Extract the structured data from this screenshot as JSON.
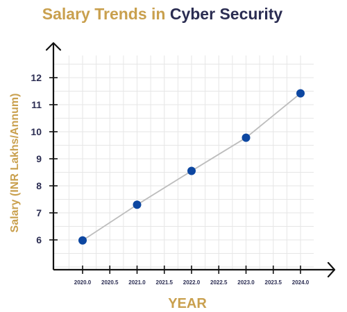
{
  "chart_data": {
    "type": "line",
    "title_part1": "Salary Trends in ",
    "title_part2": "Cyber Security",
    "xlabel": "YEAR",
    "ylabel": "Salary (INR Lakhs/Annum)",
    "xlim": [
      2020.0,
      2024.0
    ],
    "ylim": [
      6,
      12
    ],
    "x_ticks": [
      "2020.0",
      "2020.5",
      "2021.0",
      "2021.5",
      "2022.0",
      "2022.5",
      "2023.0",
      "2023.5",
      "2024.0"
    ],
    "y_ticks": [
      "6",
      "7",
      "8",
      "9",
      "10",
      "11",
      "12"
    ],
    "grid": true,
    "legend": "none",
    "series": [
      {
        "x": [
          2020.0,
          2021.0,
          2022.0,
          2023.0,
          2024.0
        ],
        "y": [
          5.98,
          7.3,
          8.55,
          9.78,
          11.42
        ]
      }
    ],
    "colors": {
      "title_accent": "#c9a04e",
      "title_dark": "#2b2d52",
      "axis_label": "#c9a04e",
      "tick_text": "#2b2d52",
      "marker": "#0d47a1",
      "line": "#bdbdbd",
      "grid": "#e6e6e6",
      "axis": "#111111"
    }
  }
}
